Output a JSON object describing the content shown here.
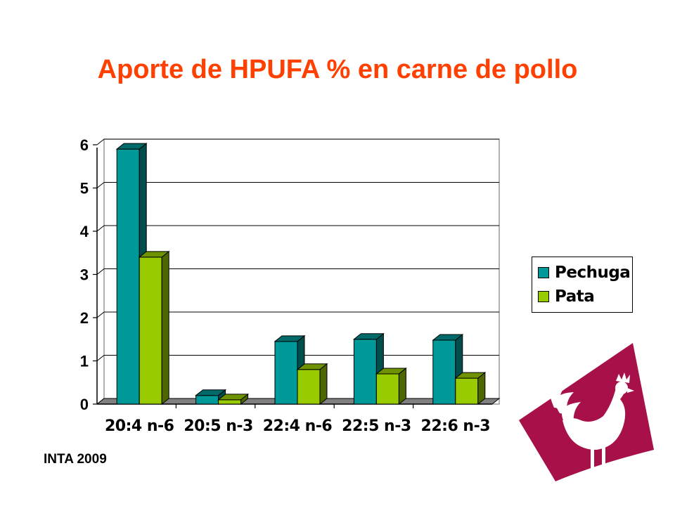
{
  "colors": {
    "title": "#ff4000",
    "pechuga": "#009999",
    "pechuga_side": "#004d4d",
    "pechuga_top": "#006a6a",
    "pata": "#99cc00",
    "pata_side": "#4d6600",
    "pata_top": "#6e9200",
    "floor": "#808080",
    "logo": "#a8104a"
  },
  "source": "INTA 2009",
  "chart_data": {
    "type": "bar",
    "title": "Aporte de HPUFA % en carne de pollo",
    "categories": [
      "20:4 n-6",
      "20:5 n-3",
      "22:4 n-6",
      "22:5 n-3",
      "22:6 n-3"
    ],
    "series": [
      {
        "name": "Pechuga",
        "values": [
          5.9,
          0.2,
          1.45,
          1.5,
          1.48
        ]
      },
      {
        "name": "Pata",
        "values": [
          3.4,
          0.1,
          0.8,
          0.7,
          0.6
        ]
      }
    ],
    "yticks": [
      "0",
      "1",
      "2",
      "3",
      "4",
      "5",
      "6"
    ],
    "ylim": [
      0,
      6
    ],
    "grid": true,
    "legend_position": "right",
    "style": "3d-clustered-bar"
  }
}
